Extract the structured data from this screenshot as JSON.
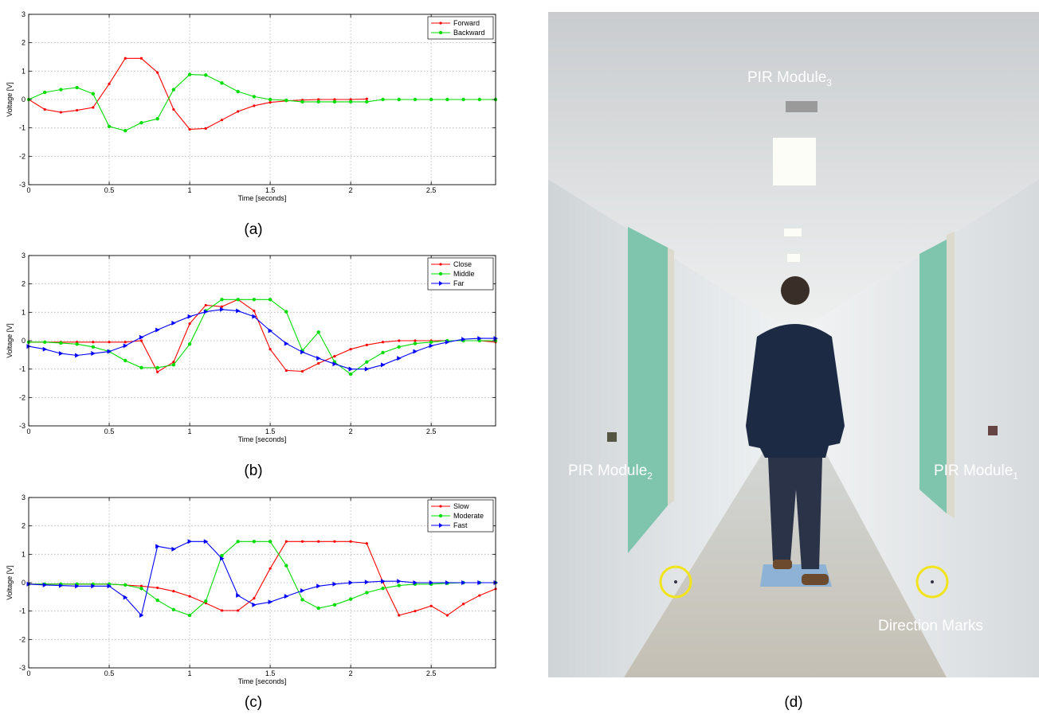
{
  "chart_data": [
    {
      "type": "line",
      "caption": "(a)",
      "xlabel": "Time [seconds]",
      "ylabel": "Voltage [V]",
      "xlim": [
        0,
        2.9
      ],
      "ylim": [
        -3,
        3
      ],
      "xticks": [
        "0",
        "0.5",
        "1",
        "1.5",
        "2",
        "2.5"
      ],
      "yticks": [
        "-3",
        "-2",
        "-1",
        "0",
        "1",
        "2",
        "3"
      ],
      "grid": true,
      "legend_position": "top-right",
      "x": [
        0,
        0.1,
        0.2,
        0.3,
        0.4,
        0.5,
        0.6,
        0.7,
        0.8,
        0.9,
        1.0,
        1.1,
        1.2,
        1.3,
        1.4,
        1.5,
        1.6,
        1.7,
        1.8,
        1.9,
        2.0,
        2.1,
        2.2,
        2.3,
        2.4,
        2.5,
        2.6,
        2.7,
        2.8,
        2.9
      ],
      "series": [
        {
          "name": "Forward",
          "color": "#ff0000",
          "marker": "dot",
          "values": [
            0,
            -0.35,
            -0.45,
            -0.38,
            -0.28,
            0.55,
            1.45,
            1.45,
            0.95,
            -0.35,
            -1.05,
            -1.02,
            -0.72,
            -0.42,
            -0.22,
            -0.1,
            -0.05,
            -0.02,
            0.0,
            0.0,
            0.0,
            0.02,
            null,
            null,
            null,
            null,
            null,
            null,
            null,
            null
          ]
        },
        {
          "name": "Backward",
          "color": "#00dd00",
          "marker": "circle",
          "values": [
            0,
            0.25,
            0.35,
            0.42,
            0.2,
            -0.95,
            -1.1,
            -0.82,
            -0.68,
            0.35,
            0.88,
            0.86,
            0.58,
            0.28,
            0.1,
            0.0,
            -0.03,
            -0.08,
            -0.08,
            -0.08,
            -0.08,
            -0.08,
            0.0,
            0.0,
            0.0,
            0.0,
            0.0,
            0.0,
            0.0,
            0.0
          ]
        }
      ]
    },
    {
      "type": "line",
      "caption": "(b)",
      "xlabel": "Time [seconds]",
      "ylabel": "Voltage [V]",
      "xlim": [
        0,
        2.9
      ],
      "ylim": [
        -3,
        3
      ],
      "xticks": [
        "0",
        "0.5",
        "1",
        "1.5",
        "2",
        "2.5"
      ],
      "yticks": [
        "-3",
        "-2",
        "-1",
        "0",
        "1",
        "2",
        "3"
      ],
      "grid": true,
      "legend_position": "top-right",
      "x": [
        0,
        0.1,
        0.2,
        0.3,
        0.4,
        0.5,
        0.6,
        0.7,
        0.8,
        0.9,
        1.0,
        1.1,
        1.2,
        1.3,
        1.4,
        1.5,
        1.6,
        1.7,
        1.8,
        1.9,
        2.0,
        2.1,
        2.2,
        2.3,
        2.4,
        2.5,
        2.6,
        2.7,
        2.8,
        2.9
      ],
      "series": [
        {
          "name": "Close",
          "color": "#ff0000",
          "marker": "dot",
          "values": [
            -0.05,
            -0.05,
            -0.05,
            -0.05,
            -0.05,
            -0.05,
            -0.05,
            0.0,
            -1.1,
            -0.75,
            0.6,
            1.25,
            1.2,
            1.45,
            1.05,
            -0.3,
            -1.05,
            -1.08,
            -0.8,
            -0.55,
            -0.3,
            -0.15,
            -0.05,
            0.0,
            0.0,
            0.0,
            0.0,
            0.0,
            0.0,
            -0.05
          ]
        },
        {
          "name": "Middle",
          "color": "#00dd00",
          "marker": "circle",
          "values": [
            -0.05,
            -0.05,
            -0.08,
            -0.12,
            -0.22,
            -0.38,
            -0.7,
            -0.95,
            -0.95,
            -0.85,
            -0.12,
            1.05,
            1.45,
            1.45,
            1.45,
            1.45,
            1.02,
            -0.35,
            0.3,
            -0.75,
            -1.18,
            -0.75,
            -0.42,
            -0.22,
            -0.1,
            -0.05,
            0.0,
            0.0,
            0.0,
            0.0
          ]
        },
        {
          "name": "Far",
          "color": "#0000ff",
          "marker": "triangle",
          "values": [
            -0.2,
            -0.3,
            -0.45,
            -0.52,
            -0.45,
            -0.38,
            -0.18,
            0.12,
            0.38,
            0.62,
            0.85,
            1.02,
            1.1,
            1.05,
            0.85,
            0.35,
            -0.1,
            -0.4,
            -0.62,
            -0.82,
            -1.0,
            -1.0,
            -0.85,
            -0.62,
            -0.38,
            -0.18,
            -0.05,
            0.05,
            0.08,
            0.08
          ]
        }
      ]
    },
    {
      "type": "line",
      "caption": "(c)",
      "xlabel": "Time [seconds]",
      "ylabel": "Voltage [V]",
      "xlim": [
        0,
        2.9
      ],
      "ylim": [
        -3,
        3
      ],
      "xticks": [
        "0",
        "0.5",
        "1",
        "1.5",
        "2",
        "2.5"
      ],
      "yticks": [
        "-3",
        "-2",
        "-1",
        "0",
        "1",
        "2",
        "3"
      ],
      "grid": true,
      "legend_position": "top-right",
      "x": [
        0,
        0.1,
        0.2,
        0.3,
        0.4,
        0.5,
        0.6,
        0.7,
        0.8,
        0.9,
        1.0,
        1.1,
        1.2,
        1.3,
        1.4,
        1.5,
        1.6,
        1.7,
        1.8,
        1.9,
        2.0,
        2.1,
        2.2,
        2.3,
        2.4,
        2.5,
        2.6,
        2.7,
        2.8,
        2.9
      ],
      "series": [
        {
          "name": "Slow",
          "color": "#ff0000",
          "marker": "dot",
          "values": [
            -0.05,
            -0.05,
            -0.05,
            -0.05,
            -0.05,
            -0.05,
            -0.08,
            -0.12,
            -0.18,
            -0.3,
            -0.48,
            -0.72,
            -0.98,
            -0.98,
            -0.55,
            0.5,
            1.45,
            1.45,
            1.45,
            1.45,
            1.45,
            1.38,
            0.02,
            -1.15,
            -1.0,
            -0.82,
            -1.15,
            -0.75,
            -0.45,
            -0.22
          ]
        },
        {
          "name": "Moderate",
          "color": "#00dd00",
          "marker": "circle",
          "values": [
            -0.05,
            -0.05,
            -0.05,
            -0.05,
            -0.05,
            -0.05,
            -0.08,
            -0.2,
            -0.62,
            -0.95,
            -1.15,
            -0.65,
            0.95,
            1.45,
            1.45,
            1.45,
            0.6,
            -0.6,
            -0.9,
            -0.78,
            -0.58,
            -0.35,
            -0.2,
            -0.1,
            -0.05,
            -0.05,
            -0.02,
            0.0,
            0.0,
            0.0
          ]
        },
        {
          "name": "Fast",
          "color": "#0000ff",
          "marker": "triangle",
          "values": [
            -0.05,
            -0.08,
            -0.1,
            -0.12,
            -0.12,
            -0.12,
            -0.52,
            -1.15,
            1.28,
            1.18,
            1.45,
            1.45,
            0.85,
            -0.45,
            -0.78,
            -0.68,
            -0.48,
            -0.28,
            -0.12,
            -0.05,
            0.0,
            0.02,
            0.05,
            0.05,
            0.0,
            0.0,
            0.0,
            0.0,
            0.0,
            0.0
          ]
        }
      ]
    }
  ],
  "photo": {
    "caption": "(d)",
    "labels": {
      "module3": "PIR Module",
      "module3_sub": "3",
      "module2": "PIR Module",
      "module2_sub": "2",
      "module1": "PIR Module",
      "module1_sub": "1",
      "marks": "Direction Marks"
    },
    "colors": {
      "wall": "#e6e9ea",
      "door": "#7fc4ad",
      "floor": "#d8d6cf",
      "marker_ring": "#f2e41c",
      "shirt": "#1d2a44",
      "jeans": "#2a3348"
    }
  }
}
